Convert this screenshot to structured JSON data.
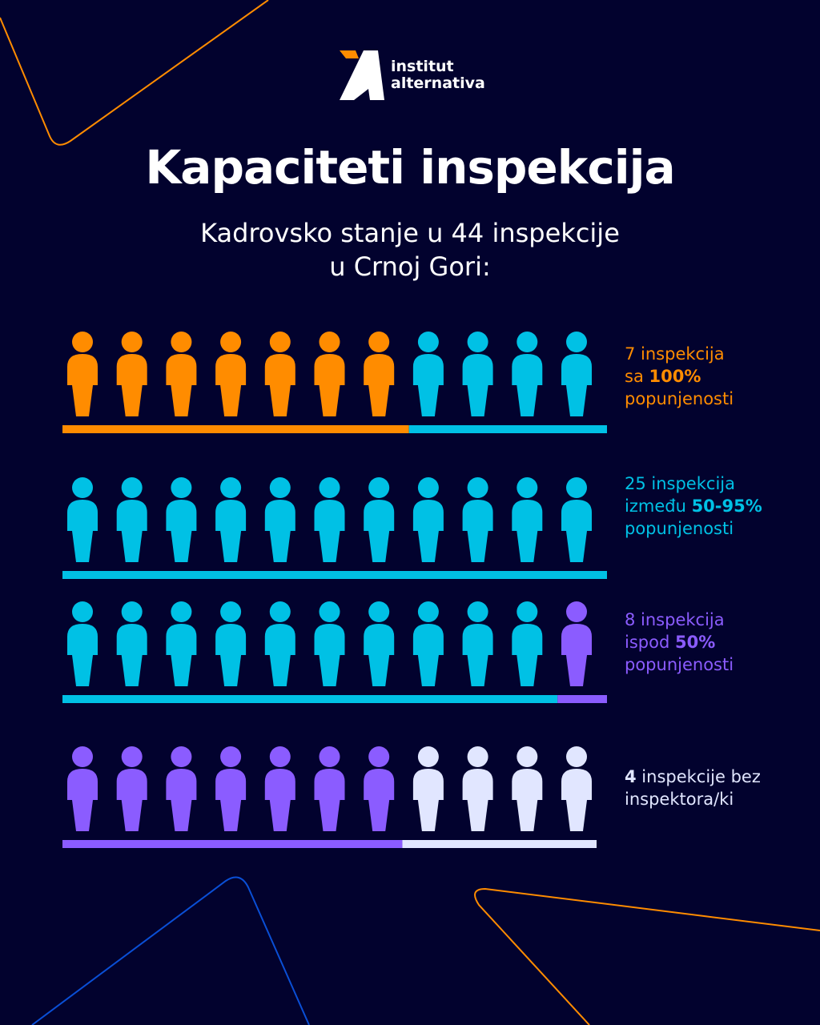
{
  "logo": {
    "line1": "institut",
    "line2": "alternativa"
  },
  "title": "Kapaciteti inspekcija",
  "subtitle": {
    "line1": "Kadrovsko stanje u 44 inspekcije",
    "line2": "u Crnoj Gori:"
  },
  "colors": {
    "background": "#02022e",
    "orange": "#ff8c00",
    "cyan": "#00c1e5",
    "purple": "#8b5cff",
    "light": "#e1e6ff"
  },
  "chart_data": {
    "type": "pictogram",
    "total": 44,
    "icons_per_row": 11,
    "rows": [
      {
        "segments": [
          {
            "category": "full",
            "count": 7
          },
          {
            "category": "partial",
            "count": 4
          }
        ]
      },
      {
        "segments": [
          {
            "category": "partial",
            "count": 11
          }
        ]
      },
      {
        "segments": [
          {
            "category": "partial",
            "count": 10
          },
          {
            "category": "low",
            "count": 1
          }
        ]
      },
      {
        "segments": [
          {
            "category": "low",
            "count": 7
          },
          {
            "category": "none",
            "count": 4
          }
        ]
      }
    ],
    "categories": [
      {
        "key": "full",
        "count": 7,
        "color": "#ff8c00",
        "label": {
          "pre": "7 inspekcija",
          "mid": "sa ",
          "bold": "100%",
          "post": "popunjenosti"
        }
      },
      {
        "key": "partial",
        "count": 25,
        "color": "#00c1e5",
        "label": {
          "pre": "25 inspekcija",
          "mid": "između ",
          "bold": "50-95%",
          "post": "popunjenosti"
        }
      },
      {
        "key": "low",
        "count": 8,
        "color": "#8b5cff",
        "label": {
          "pre": "8 inspekcija",
          "mid": "ispod ",
          "bold": "50%",
          "post": "popunjenosti"
        }
      },
      {
        "key": "none",
        "count": 4,
        "color": "#e1e6ff",
        "label": {
          "bold": "4",
          "pre": " inspekcije bez",
          "post": "inspektora/ki"
        }
      }
    ]
  }
}
